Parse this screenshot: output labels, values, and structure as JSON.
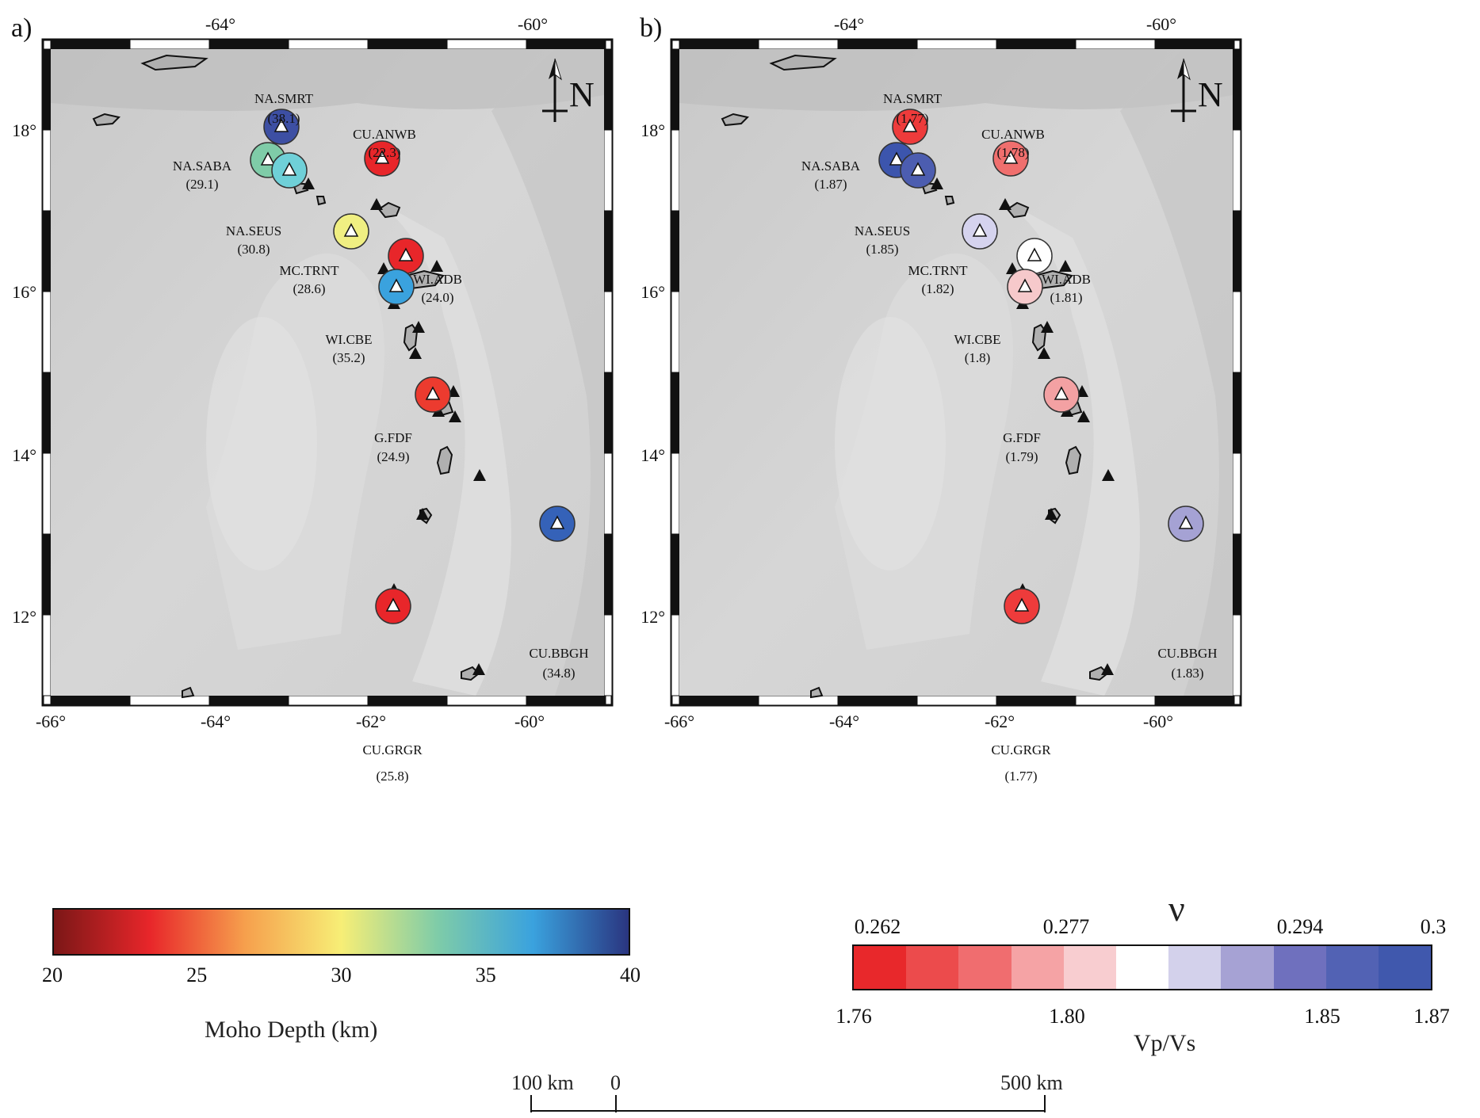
{
  "panels": [
    {
      "id": "a",
      "label": "a)",
      "top_ticks": [
        "-64°",
        "-60°"
      ],
      "bottom_ticks": [
        "-66°",
        "-64°",
        "-62°",
        "-60°"
      ],
      "left_ticks": [
        "18°",
        "16°",
        "14°",
        "12°"
      ],
      "north_label": "N",
      "stations": [
        {
          "name": "NA.SMRT",
          "value": "(38.1)",
          "color": "#3d4fa3"
        },
        {
          "name": "NA.SABA",
          "value": "(29.1)",
          "color": "#7fcca8"
        },
        {
          "name": "NA.SEUS",
          "value": "(30.8)",
          "color": "#6fd0d8"
        },
        {
          "name": "CU.ANWB",
          "value": "(22.3)",
          "color": "#e8262a"
        },
        {
          "name": "MC.TRNT",
          "value": "(28.6)",
          "color": "#f0ef82"
        },
        {
          "name": "WI.ADB",
          "value": "(24.0)",
          "color": "#e8262a"
        },
        {
          "name": "WI.CBE",
          "value": "(35.2)",
          "color": "#3aa2de"
        },
        {
          "name": "G.FDF",
          "value": "(24.9)",
          "color": "#ec3b2f"
        },
        {
          "name": "CU.BBGH",
          "value": "(34.8)",
          "color": "#3562b8"
        },
        {
          "name": "CU.GRGR",
          "value": "(25.8)",
          "color": "#e8262a"
        }
      ]
    },
    {
      "id": "b",
      "label": "b)",
      "top_ticks": [
        "-64°",
        "-60°"
      ],
      "bottom_ticks": [
        "-66°",
        "-64°",
        "-62°",
        "-60°"
      ],
      "left_ticks": [
        "18°",
        "16°",
        "14°",
        "12°"
      ],
      "north_label": "N",
      "stations": [
        {
          "name": "NA.SMRT",
          "value": "(1.77)",
          "color": "#ee3b3b"
        },
        {
          "name": "NA.SABA",
          "value": "(1.87)",
          "color": "#3c55ad"
        },
        {
          "name": "NA.SEUS",
          "value": "(1.85)",
          "color": "#4c5db0"
        },
        {
          "name": "CU.ANWB",
          "value": "(1.78)",
          "color": "#f06f6e"
        },
        {
          "name": "MC.TRNT",
          "value": "(1.82)",
          "color": "#d5d3ee"
        },
        {
          "name": "WI.ADB",
          "value": "(1.81)",
          "color": "#ffffff"
        },
        {
          "name": "WI.CBE",
          "value": "(1.8)",
          "color": "#f6c9cb"
        },
        {
          "name": "G.FDF",
          "value": "(1.79)",
          "color": "#f3a1a3"
        },
        {
          "name": "CU.BBGH",
          "value": "(1.83)",
          "color": "#a5a2d4"
        },
        {
          "name": "CU.GRGR",
          "value": "(1.77)",
          "color": "#ee3b3b"
        }
      ]
    }
  ],
  "moho_colorbar": {
    "title": "Moho Depth (km)",
    "min": 20,
    "max": 40,
    "tick_labels": [
      "20",
      "25",
      "30",
      "35",
      "40"
    ],
    "colors": [
      "#7b1717",
      "#e8262a",
      "#f6a04d",
      "#f7ee76",
      "#7fcca8",
      "#3aa2de",
      "#2a3580"
    ]
  },
  "vpvs_colorbar": {
    "title": "Vp/Vs",
    "nu_symbol": "ν",
    "top_labels": [
      "0.262",
      "0.277",
      "0.294",
      "0.3"
    ],
    "bottom_labels": [
      "1.76",
      "1.80",
      "1.85",
      "1.87"
    ],
    "colors": [
      "#e8282b",
      "#ec4b4c",
      "#f06d6f",
      "#f5a3a5",
      "#f8cdd0",
      "#ffffff",
      "#d3d1eb",
      "#a6a2d4",
      "#6f70be",
      "#5262b4",
      "#4058ad"
    ]
  },
  "scale_bar": {
    "labels": [
      "100 km",
      "0",
      "500 km"
    ]
  }
}
